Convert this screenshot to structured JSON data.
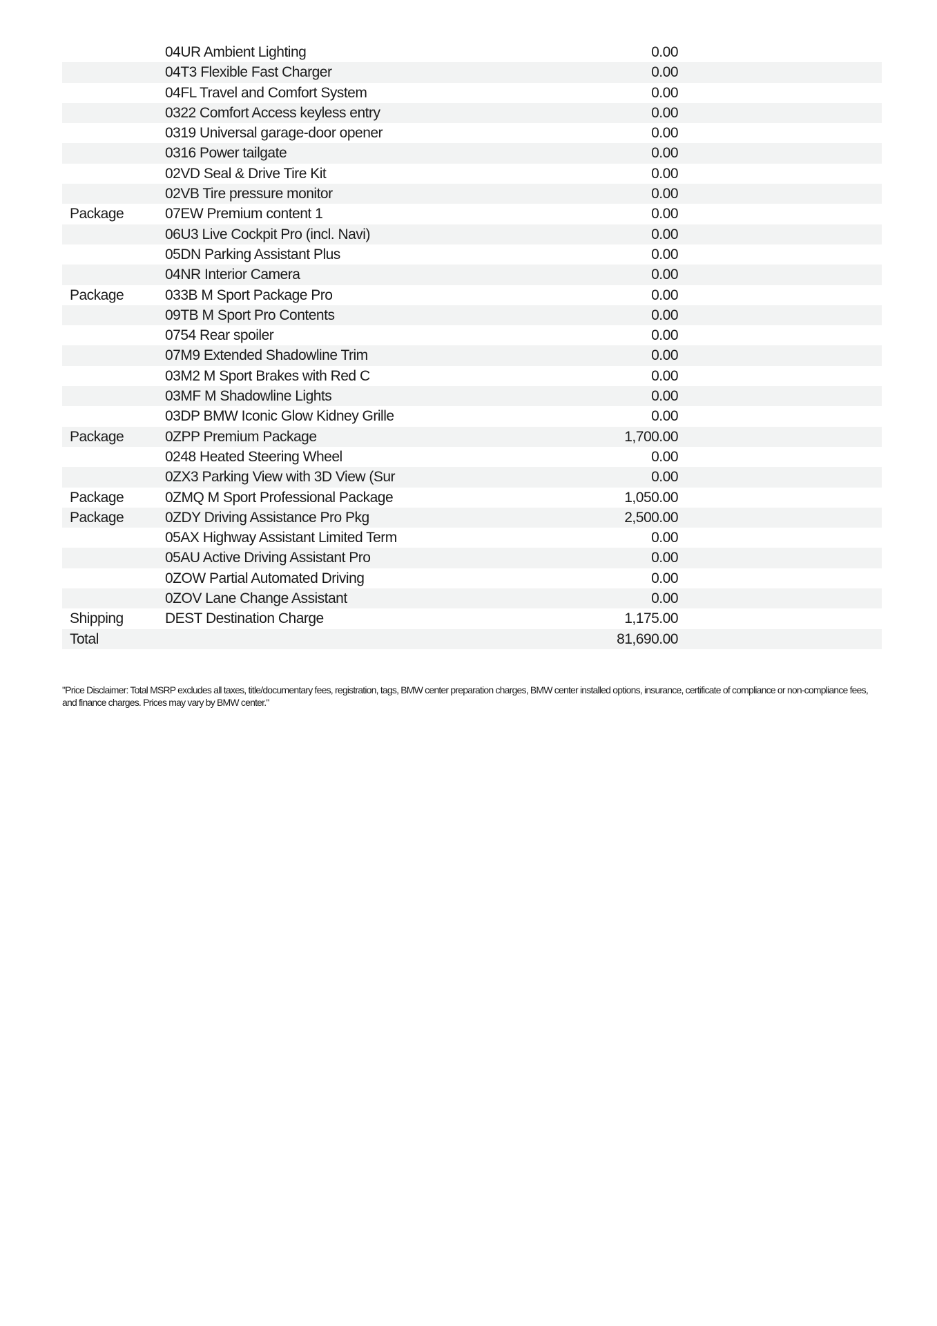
{
  "rows": [
    {
      "category": "",
      "description": "04UR Ambient Lighting",
      "amount": "0.00"
    },
    {
      "category": "",
      "description": "04T3 Flexible Fast Charger",
      "amount": "0.00"
    },
    {
      "category": "",
      "description": "04FL Travel and Comfort System",
      "amount": "0.00"
    },
    {
      "category": "",
      "description": "0322 Comfort Access keyless entry",
      "amount": "0.00"
    },
    {
      "category": "",
      "description": "0319 Universal garage-door opener",
      "amount": "0.00"
    },
    {
      "category": "",
      "description": "0316 Power tailgate",
      "amount": "0.00"
    },
    {
      "category": "",
      "description": "02VD Seal & Drive Tire Kit",
      "amount": "0.00"
    },
    {
      "category": "",
      "description": "02VB Tire pressure monitor",
      "amount": "0.00"
    },
    {
      "category": "Package",
      "description": "07EW Premium content 1",
      "amount": "0.00"
    },
    {
      "category": "",
      "description": "06U3 Live Cockpit Pro (incl. Navi)",
      "amount": "0.00"
    },
    {
      "category": "",
      "description": "05DN Parking Assistant Plus",
      "amount": "0.00"
    },
    {
      "category": "",
      "description": "04NR Interior Camera",
      "amount": "0.00"
    },
    {
      "category": "Package",
      "description": "033B M Sport Package Pro",
      "amount": "0.00"
    },
    {
      "category": "",
      "description": "09TB M Sport Pro Contents",
      "amount": "0.00"
    },
    {
      "category": "",
      "description": "0754 Rear spoiler",
      "amount": "0.00"
    },
    {
      "category": "",
      "description": "07M9 Extended Shadowline Trim",
      "amount": "0.00"
    },
    {
      "category": "",
      "description": "03M2 M Sport Brakes with Red C",
      "amount": "0.00"
    },
    {
      "category": "",
      "description": "03MF M Shadowline Lights",
      "amount": "0.00"
    },
    {
      "category": "",
      "description": "03DP BMW Iconic Glow Kidney Grille",
      "amount": "0.00"
    },
    {
      "category": "Package",
      "description": "0ZPP Premium Package",
      "amount": "1,700.00"
    },
    {
      "category": "",
      "description": "0248 Heated Steering Wheel",
      "amount": "0.00"
    },
    {
      "category": "",
      "description": "0ZX3 Parking View with 3D View (Sur",
      "amount": "0.00"
    },
    {
      "category": "Package",
      "description": "0ZMQ M Sport Professional Package",
      "amount": "1,050.00"
    },
    {
      "category": "Package",
      "description": "0ZDY Driving Assistance Pro Pkg",
      "amount": "2,500.00"
    },
    {
      "category": "",
      "description": "05AX Highway Assistant Limited Term",
      "amount": "0.00"
    },
    {
      "category": "",
      "description": "05AU Active Driving Assistant Pro",
      "amount": "0.00"
    },
    {
      "category": "",
      "description": "0ZOW Partial Automated Driving",
      "amount": "0.00"
    },
    {
      "category": "",
      "description": "0ZOV Lane Change Assistant",
      "amount": "0.00"
    },
    {
      "category": "Shipping",
      "description": "DEST Destination Charge",
      "amount": "1,175.00"
    },
    {
      "category": "Total",
      "description": "",
      "amount": "81,690.00"
    }
  ],
  "disclaimer": "\"Price Disclaimer: Total MSRP excludes all taxes, title/documentary fees, registration, tags, BMW center preparation charges, BMW center installed options, insurance, certificate of compliance or non-compliance fees, and finance charges. Prices may vary by BMW center.\"",
  "colors": {
    "row_shade": "#f2f3f3",
    "text": "#1a1a1a"
  }
}
